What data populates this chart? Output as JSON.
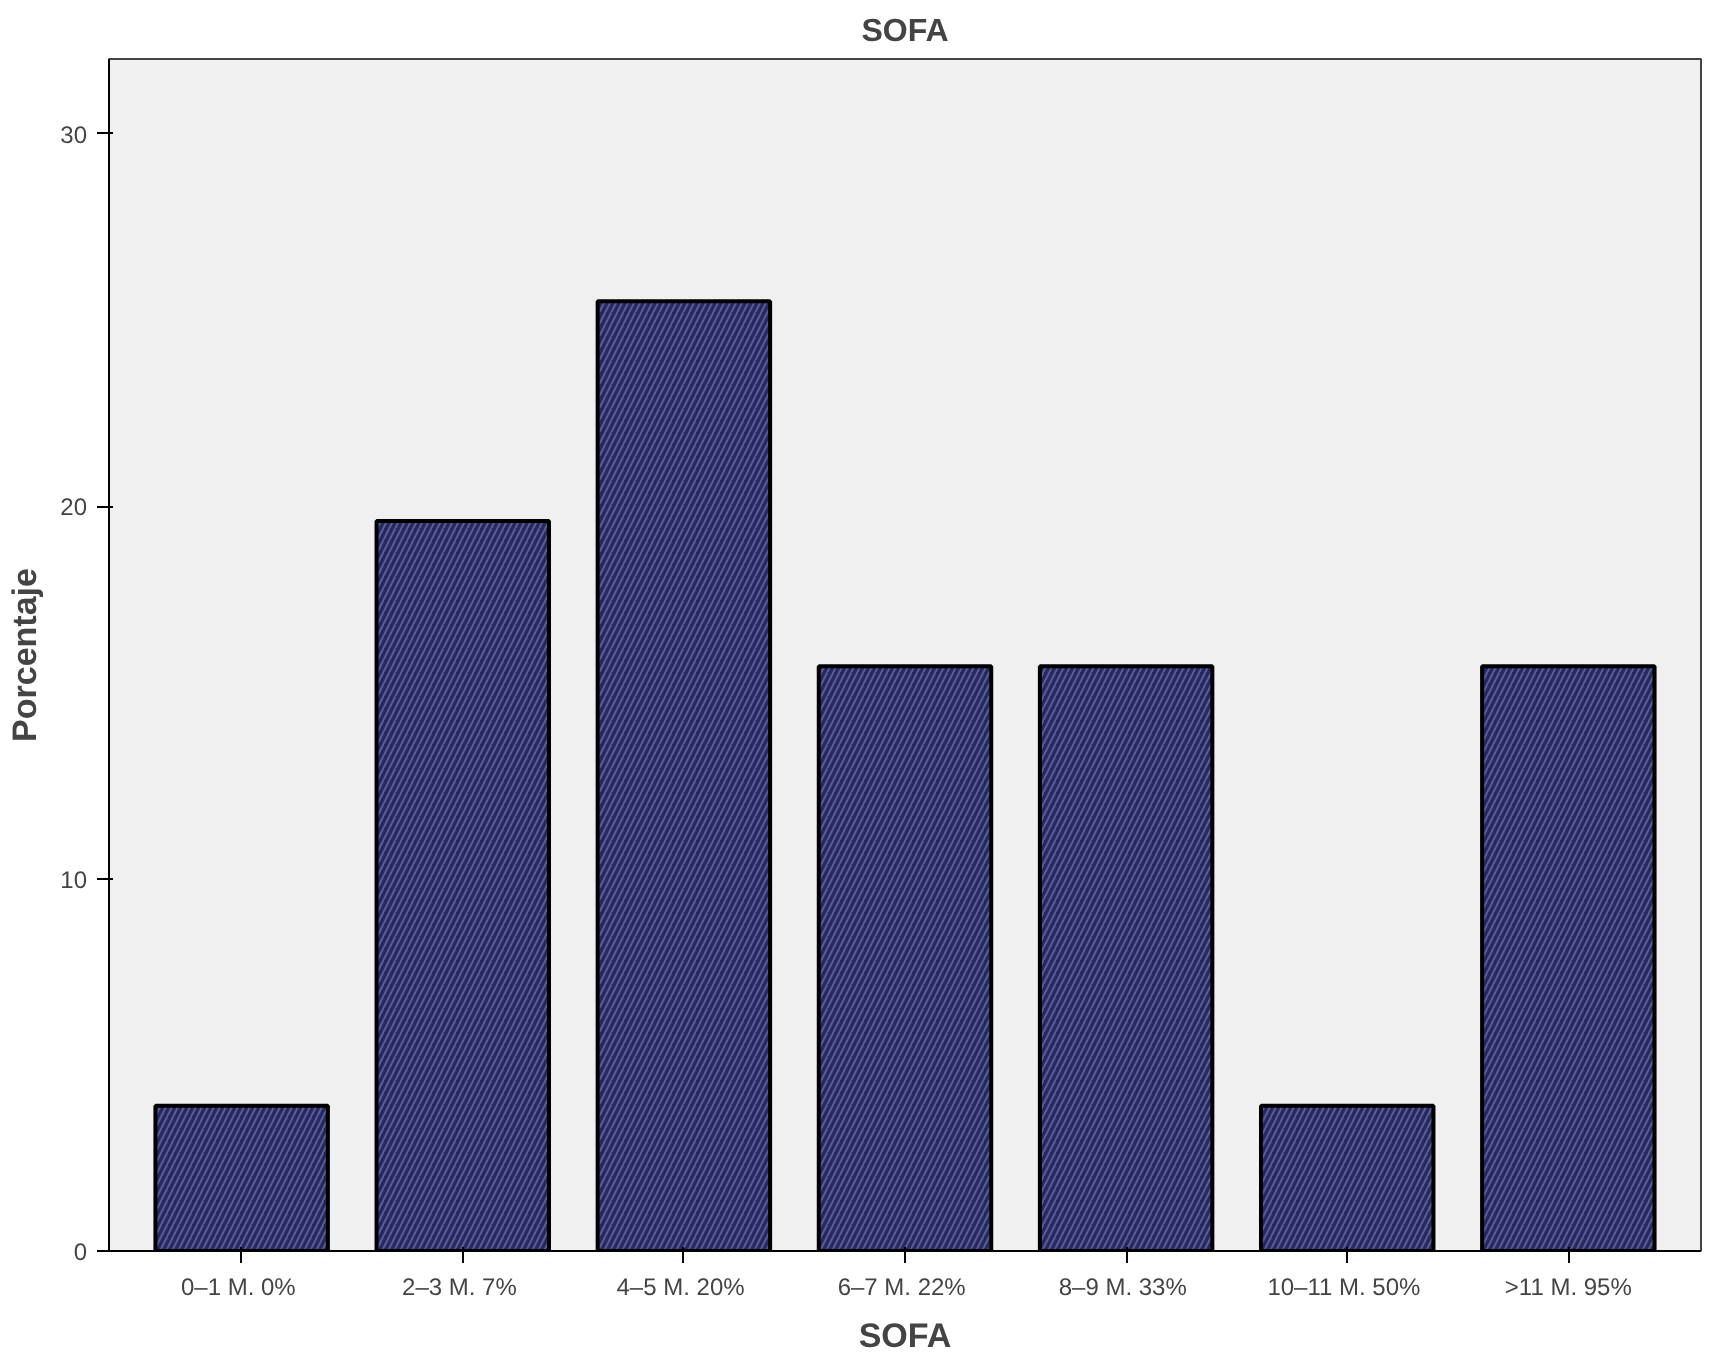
{
  "chart_data": {
    "type": "bar",
    "title": "SOFA",
    "xlabel": "SOFA",
    "ylabel": "Porcentaje",
    "categories": [
      "0–1  M. 0%",
      "2–3  M. 7%",
      "4–5  M. 20%",
      "6–7  M. 22%",
      "8–9  M. 33%",
      "10–11  M. 50%",
      ">11 M. 95%"
    ],
    "values": [
      3.9,
      19.6,
      25.5,
      15.7,
      15.7,
      3.9,
      15.7
    ],
    "color": "#26285e",
    "ylim": [
      0,
      32
    ],
    "yticks": [
      0,
      10,
      20,
      30
    ],
    "grid": false
  }
}
